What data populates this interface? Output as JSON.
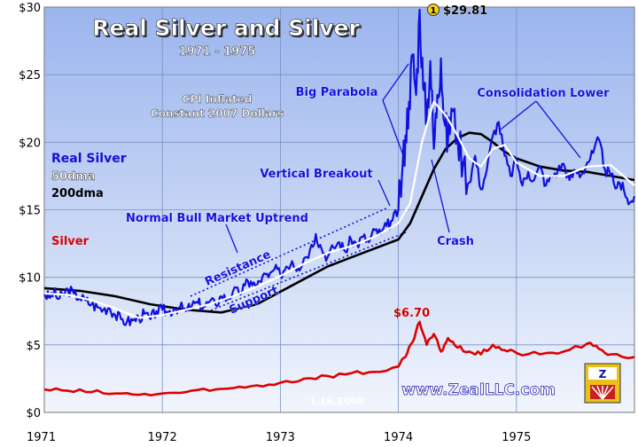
{
  "chart_data": {
    "type": "line",
    "title": "Real Silver and Silver",
    "subtitle": "1971 - 1975",
    "note": "CPI Inflated\nConstant 2007 Dollars",
    "date_stamp": "1.16.2008",
    "watermark": "www.ZealLLC.com",
    "xlim": [
      1971.0,
      1976.0
    ],
    "ylim": [
      0,
      30
    ],
    "x_ticks": [
      {
        "value": 1971,
        "label": "1971"
      },
      {
        "value": 1972,
        "label": "1972"
      },
      {
        "value": 1973,
        "label": "1973"
      },
      {
        "value": 1974,
        "label": "1974"
      },
      {
        "value": 1975,
        "label": "1975"
      }
    ],
    "y_ticks": [
      {
        "value": 0,
        "label": "$0"
      },
      {
        "value": 5,
        "label": "$5"
      },
      {
        "value": 10,
        "label": "$10"
      },
      {
        "value": 15,
        "label": "$15"
      },
      {
        "value": 20,
        "label": "$20"
      },
      {
        "value": 25,
        "label": "$25"
      },
      {
        "value": 30,
        "label": "$30"
      }
    ],
    "grid": true,
    "legend": [
      {
        "label": "Real Silver",
        "color": "#1010dd"
      },
      {
        "label": "50dma",
        "color": "#ffffff"
      },
      {
        "label": "200dma",
        "color": "#000000"
      },
      {
        "label": "Silver",
        "color": "#dd0000"
      }
    ],
    "series": [
      {
        "name": "Real Silver",
        "color": "#1010dd",
        "x": [
          1971.0,
          1971.04,
          1971.08,
          1971.12,
          1971.16,
          1971.2,
          1971.25,
          1971.3,
          1971.35,
          1971.4,
          1971.45,
          1971.5,
          1971.55,
          1971.6,
          1971.65,
          1971.7,
          1971.75,
          1971.8,
          1971.85,
          1971.9,
          1971.95,
          1972.0,
          1972.05,
          1972.1,
          1972.15,
          1972.2,
          1972.25,
          1972.3,
          1972.35,
          1972.4,
          1972.45,
          1972.5,
          1972.55,
          1972.6,
          1972.65,
          1972.7,
          1972.75,
          1972.8,
          1972.85,
          1972.9,
          1972.95,
          1973.0,
          1973.05,
          1973.1,
          1973.15,
          1973.2,
          1973.25,
          1973.3,
          1973.35,
          1973.4,
          1973.45,
          1973.5,
          1973.55,
          1973.6,
          1973.65,
          1973.7,
          1973.75,
          1973.8,
          1973.85,
          1973.9,
          1973.95,
          1974.0,
          1974.03,
          1974.06,
          1974.09,
          1974.12,
          1974.15,
          1974.18,
          1974.21,
          1974.24,
          1974.27,
          1974.3,
          1974.33,
          1974.36,
          1974.39,
          1974.42,
          1974.45,
          1974.5,
          1974.55,
          1974.6,
          1974.65,
          1974.7,
          1974.75,
          1974.8,
          1974.85,
          1974.9,
          1974.95,
          1975.0,
          1975.05,
          1975.1,
          1975.15,
          1975.2,
          1975.25,
          1975.3,
          1975.35,
          1975.4,
          1975.45,
          1975.5,
          1975.55,
          1975.6,
          1975.65,
          1975.7,
          1975.75,
          1975.8,
          1975.85,
          1975.9,
          1975.95,
          1976.0
        ],
        "y": [
          8.8,
          8.5,
          8.9,
          8.4,
          8.7,
          9.1,
          8.8,
          8.5,
          8.3,
          8.0,
          7.8,
          7.6,
          7.8,
          7.2,
          6.9,
          6.7,
          6.8,
          7.0,
          7.3,
          6.9,
          7.5,
          7.6,
          7.4,
          7.7,
          7.8,
          7.5,
          7.9,
          8.1,
          7.8,
          8.2,
          8.0,
          8.6,
          8.4,
          9.0,
          8.8,
          9.4,
          9.7,
          9.3,
          10.1,
          10.0,
          10.6,
          10.2,
          10.8,
          11.2,
          10.7,
          11.4,
          12.0,
          13.2,
          12.1,
          11.5,
          12.2,
          12.6,
          11.9,
          12.8,
          12.4,
          13.0,
          12.6,
          13.5,
          13.2,
          13.8,
          14.2,
          15.0,
          17.5,
          20.5,
          23.0,
          26.5,
          23.5,
          29.8,
          24.0,
          22.0,
          26.0,
          19.5,
          23.5,
          26.2,
          21.5,
          20.0,
          22.5,
          20.5,
          18.5,
          17.0,
          19.0,
          16.5,
          18.0,
          20.5,
          21.5,
          19.0,
          17.5,
          18.8,
          16.8,
          17.8,
          17.2,
          18.2,
          16.8,
          17.5,
          17.9,
          18.4,
          17.2,
          17.9,
          17.6,
          18.5,
          19.2,
          20.2,
          18.0,
          17.5,
          16.6,
          17.0,
          15.4,
          16.0
        ],
        "style": "jagged"
      },
      {
        "name": "50dma",
        "color": "#ffffff",
        "x": [
          1971.0,
          1971.2,
          1971.4,
          1971.6,
          1971.8,
          1972.0,
          1972.2,
          1972.4,
          1972.6,
          1972.8,
          1973.0,
          1973.2,
          1973.4,
          1973.6,
          1973.8,
          1974.0,
          1974.1,
          1974.2,
          1974.3,
          1974.4,
          1974.5,
          1974.6,
          1974.7,
          1974.8,
          1974.9,
          1975.0,
          1975.2,
          1975.4,
          1975.6,
          1975.8,
          1976.0
        ],
        "y": [
          8.8,
          8.7,
          8.3,
          7.7,
          7.0,
          7.2,
          7.6,
          8.0,
          8.6,
          9.3,
          10.1,
          11.0,
          11.8,
          12.3,
          13.0,
          14.0,
          15.5,
          20.0,
          23.0,
          22.0,
          20.5,
          18.8,
          18.2,
          19.5,
          19.8,
          18.5,
          17.5,
          17.5,
          18.2,
          18.3,
          16.8
        ]
      },
      {
        "name": "200dma",
        "color": "#000000",
        "x": [
          1971.0,
          1971.3,
          1971.6,
          1971.9,
          1972.2,
          1972.5,
          1972.8,
          1973.1,
          1973.4,
          1973.7,
          1974.0,
          1974.1,
          1974.2,
          1974.3,
          1974.4,
          1974.5,
          1974.6,
          1974.7,
          1974.8,
          1974.9,
          1975.0,
          1975.2,
          1975.4,
          1975.6,
          1975.8,
          1976.0
        ],
        "y": [
          9.2,
          9.0,
          8.6,
          8.0,
          7.6,
          7.4,
          8.0,
          9.4,
          10.8,
          11.8,
          12.8,
          14.0,
          16.0,
          18.0,
          19.5,
          20.3,
          20.7,
          20.6,
          20.0,
          19.3,
          18.8,
          18.2,
          17.9,
          17.8,
          17.5,
          17.2
        ]
      },
      {
        "name": "Silver",
        "color": "#dd0000",
        "x": [
          1971.0,
          1971.2,
          1971.4,
          1971.6,
          1971.8,
          1972.0,
          1972.2,
          1972.4,
          1972.6,
          1972.8,
          1973.0,
          1973.2,
          1973.4,
          1973.6,
          1973.8,
          1974.0,
          1974.06,
          1974.12,
          1974.18,
          1974.24,
          1974.3,
          1974.36,
          1974.42,
          1974.5,
          1974.6,
          1974.7,
          1974.8,
          1974.9,
          1975.0,
          1975.2,
          1975.4,
          1975.6,
          1975.7,
          1975.8,
          1976.0
        ],
        "y": [
          1.7,
          1.6,
          1.5,
          1.4,
          1.3,
          1.4,
          1.5,
          1.6,
          1.8,
          2.0,
          2.2,
          2.5,
          2.7,
          2.9,
          3.0,
          3.4,
          4.1,
          5.2,
          6.7,
          5.0,
          5.8,
          4.5,
          5.5,
          4.8,
          4.5,
          4.3,
          5.0,
          4.6,
          4.4,
          4.3,
          4.5,
          5.1,
          4.7,
          4.3,
          4.1
        ],
        "style": "jagged"
      }
    ],
    "annotations": [
      {
        "text": "$29.81",
        "color": "#000000",
        "x": 1974.18,
        "y": 29.81,
        "marker": "1"
      },
      {
        "text": "$6.70",
        "color": "#cc0000",
        "x": 1974.18,
        "y": 6.7
      },
      {
        "text": "Big Parabola",
        "color": "#1010dd"
      },
      {
        "text": "Consolidation Lower",
        "color": "#1010dd"
      },
      {
        "text": "Vertical Breakout",
        "color": "#1010dd"
      },
      {
        "text": "Normal Bull Market Uptrend",
        "color": "#1010dd"
      },
      {
        "text": "Resistance",
        "color": "#1010dd"
      },
      {
        "text": "Support",
        "color": "#1010dd"
      },
      {
        "text": "Crash",
        "color": "#1010dd"
      }
    ]
  }
}
